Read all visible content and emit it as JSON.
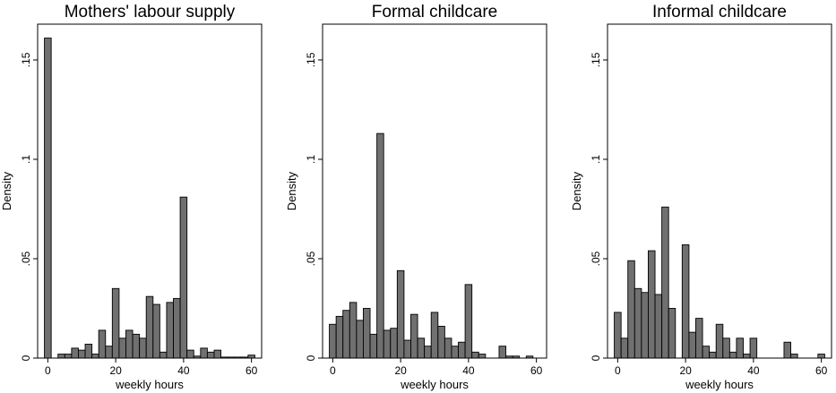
{
  "chart_data": [
    {
      "type": "bar",
      "title": "Mothers' labour supply",
      "xlabel": "weekly hours",
      "ylabel": "Density",
      "xlim": [
        -3,
        63
      ],
      "ylim": [
        0,
        0.168
      ],
      "x_ticks": [
        0,
        20,
        40,
        60
      ],
      "x_tick_labels": [
        "0",
        "20",
        "40",
        "60"
      ],
      "y_ticks": [
        0,
        0.05,
        0.1,
        0.15
      ],
      "y_tick_labels": [
        "0",
        ".05",
        ".1",
        ".15"
      ],
      "bin_width": 2,
      "series": [
        {
          "x": [
            0,
            4,
            6,
            8,
            10,
            12,
            14,
            16,
            18,
            20,
            22,
            24,
            26,
            28,
            30,
            32,
            34,
            36,
            38,
            40,
            42,
            44,
            46,
            48,
            50,
            52,
            54,
            56,
            58,
            60
          ],
          "values": [
            0.161,
            0.002,
            0.002,
            0.005,
            0.004,
            0.007,
            0.002,
            0.014,
            0.006,
            0.035,
            0.01,
            0.014,
            0.012,
            0.01,
            0.031,
            0.027,
            0.003,
            0.028,
            0.03,
            0.081,
            0.004,
            0.001,
            0.005,
            0.003,
            0.004,
            0.0005,
            0.0005,
            0.0005,
            0.0005,
            0.0015
          ]
        }
      ]
    },
    {
      "type": "bar",
      "title": "Formal childcare",
      "xlabel": "weekly hours",
      "ylabel": "Density",
      "xlim": [
        -3,
        63
      ],
      "ylim": [
        0,
        0.168
      ],
      "x_ticks": [
        0,
        20,
        40,
        60
      ],
      "x_tick_labels": [
        "0",
        "20",
        "40",
        "60"
      ],
      "y_ticks": [
        0,
        0.05,
        0.1,
        0.15
      ],
      "y_tick_labels": [
        "0",
        ".05",
        ".1",
        ".15"
      ],
      "bin_width": 2,
      "series": [
        {
          "x": [
            0,
            2,
            4,
            6,
            8,
            10,
            12,
            14,
            16,
            18,
            20,
            22,
            24,
            26,
            28,
            30,
            32,
            34,
            36,
            38,
            40,
            42,
            44,
            46,
            48,
            50,
            52,
            54,
            56,
            58,
            60
          ],
          "values": [
            0.017,
            0.021,
            0.024,
            0.028,
            0.019,
            0.025,
            0.012,
            0.113,
            0.014,
            0.015,
            0.044,
            0.009,
            0.022,
            0.01,
            0.006,
            0.023,
            0.016,
            0.01,
            0.006,
            0.008,
            0.037,
            0.003,
            0.002,
            0,
            0,
            0.006,
            0.001,
            0.001,
            0,
            0.001,
            0
          ]
        }
      ]
    },
    {
      "type": "bar",
      "title": "Informal childcare",
      "xlabel": "weekly hours",
      "ylabel": "Density",
      "xlim": [
        -3,
        63
      ],
      "ylim": [
        0,
        0.168
      ],
      "x_ticks": [
        0,
        20,
        40,
        60
      ],
      "x_tick_labels": [
        "0",
        "20",
        "40",
        "60"
      ],
      "y_ticks": [
        0,
        0.05,
        0.1,
        0.15
      ],
      "y_tick_labels": [
        "0",
        ".05",
        ".1",
        ".15"
      ],
      "bin_width": 2,
      "series": [
        {
          "x": [
            0,
            2,
            4,
            6,
            8,
            10,
            12,
            14,
            16,
            18,
            20,
            22,
            24,
            26,
            28,
            30,
            32,
            34,
            36,
            38,
            40,
            42,
            44,
            46,
            48,
            50,
            52,
            54,
            56,
            58,
            60
          ],
          "values": [
            0.023,
            0.01,
            0.049,
            0.035,
            0.033,
            0.054,
            0.032,
            0.076,
            0.025,
            0,
            0.057,
            0.013,
            0.02,
            0.006,
            0.003,
            0.017,
            0.01,
            0.003,
            0.01,
            0.002,
            0.01,
            0,
            0,
            0,
            0,
            0.008,
            0.002,
            0,
            0,
            0,
            0.002
          ]
        }
      ]
    }
  ]
}
